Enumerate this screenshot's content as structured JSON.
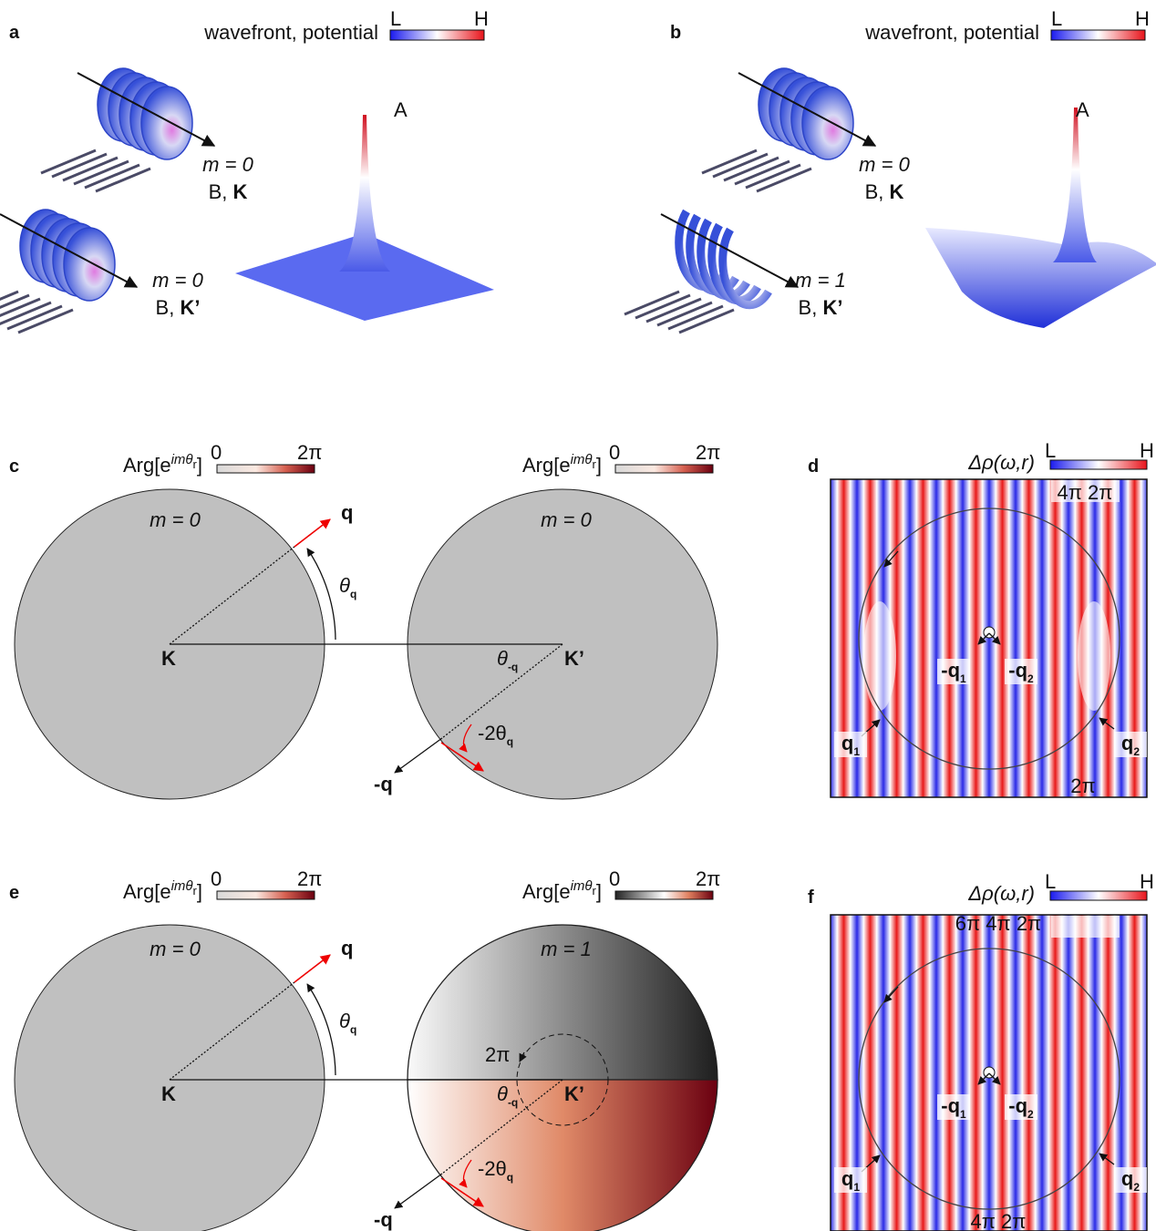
{
  "a": {
    "label": "a",
    "legend": {
      "title": "wavefront, potential",
      "low": "L",
      "high": "H"
    },
    "beams": [
      {
        "mode": "m = 0",
        "prefix": "B, ",
        "valley": "K"
      },
      {
        "mode": "m = 0",
        "prefix": "B, ",
        "valley": "K’"
      }
    ],
    "peak": "A"
  },
  "b": {
    "label": "b",
    "legend": {
      "title": "wavefront, potential",
      "low": "L",
      "high": "H"
    },
    "beams": [
      {
        "mode": "m = 0",
        "prefix": "B, ",
        "valley": "K"
      },
      {
        "mode": "m = 1",
        "prefix": "B, ",
        "valley": "K’"
      }
    ],
    "peak": "A"
  },
  "c": {
    "label": "c",
    "colorbars": [
      {
        "title": "Arg[e",
        "sup": "imθ",
        "sup_sub": "r",
        "close": "]",
        "low": "0",
        "high": "2π"
      },
      {
        "title": "Arg[e",
        "sup": "imθ",
        "sup_sub": "r",
        "close": "]",
        "low": "0",
        "high": "2π"
      }
    ],
    "modes": [
      "m = 0",
      "m = 0"
    ],
    "points": [
      "K",
      "K’"
    ],
    "q": "q",
    "theta_q": {
      "main": "θ",
      "sub": "q"
    },
    "theta_minus_q": {
      "main": "θ",
      "sub": "-q"
    },
    "minus_two_theta": {
      "main": "-2θ",
      "sub": "q"
    },
    "minus_q": "-q"
  },
  "d": {
    "label": "d",
    "legend": {
      "title": "Δρ(ω,r)",
      "low": "L",
      "high": "H"
    },
    "phase_top": "4π 2π",
    "phase_bottom": "2π",
    "q_labels": [
      {
        "main": "-q",
        "sub": "1"
      },
      {
        "main": "-q",
        "sub": "2"
      },
      {
        "main": "q",
        "sub": "1"
      },
      {
        "main": "q",
        "sub": "2"
      }
    ]
  },
  "e": {
    "label": "e",
    "colorbars": [
      {
        "title": "Arg[e",
        "sup": "imθ",
        "sup_sub": "r",
        "close": "]",
        "low": "0",
        "high": "2π"
      },
      {
        "title": "Arg[e",
        "sup": "imθ",
        "sup_sub": "r",
        "close": "]",
        "low": "0",
        "high": "2π"
      }
    ],
    "modes": [
      "m = 0",
      "m = 1"
    ],
    "points": [
      "K",
      "K’"
    ],
    "q": "q",
    "theta_q": {
      "main": "θ",
      "sub": "q"
    },
    "theta_minus_q": {
      "main": "θ",
      "sub": "-q"
    },
    "minus_two_theta": {
      "main": "-2θ",
      "sub": "q"
    },
    "minus_q": "-q",
    "winding": "2π"
  },
  "f": {
    "label": "f",
    "legend": {
      "title": "Δρ(ω,r)",
      "low": "L",
      "high": "H"
    },
    "phase_top": "6π 4π 2π",
    "phase_bottom": "4π  2π",
    "q_labels": [
      {
        "main": "-q",
        "sub": "1"
      },
      {
        "main": "-q",
        "sub": "2"
      },
      {
        "main": "q",
        "sub": "1"
      },
      {
        "main": "q",
        "sub": "2"
      }
    ]
  }
}
